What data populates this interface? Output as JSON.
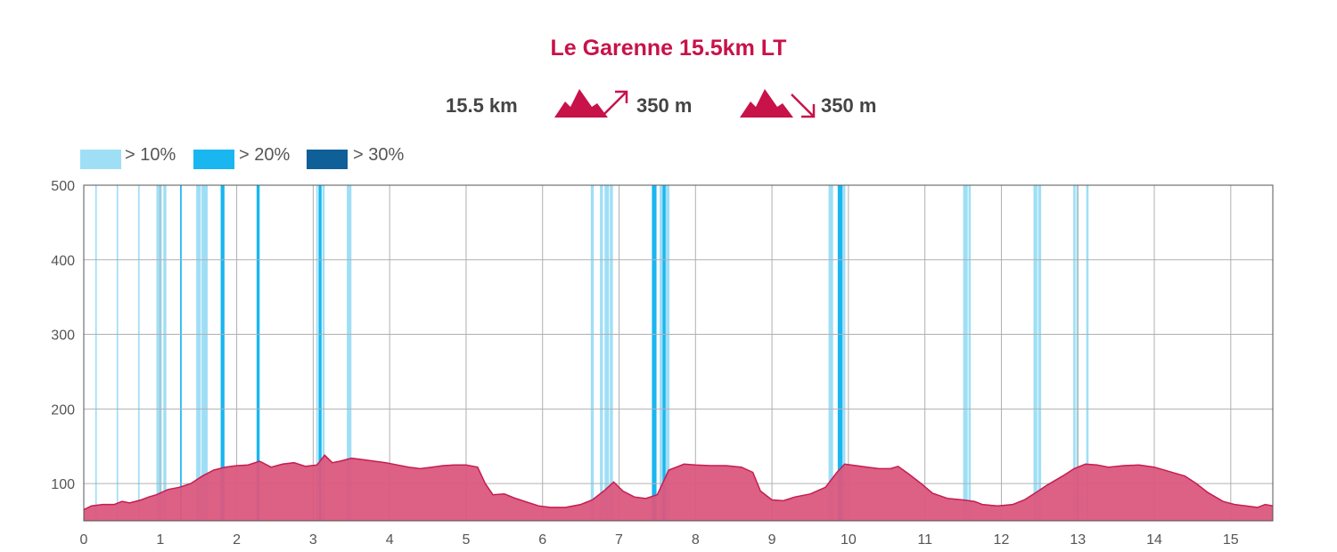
{
  "chart_data": {
    "type": "area",
    "title": "Le Garenne 15.5km LT",
    "stats": {
      "distance": "15.5 km",
      "ascent": "350 m",
      "descent": "350 m"
    },
    "xlabel": "",
    "ylabel": "",
    "xlim": [
      0,
      15.55
    ],
    "ylim": [
      50,
      500
    ],
    "x_ticks": [
      0,
      1,
      2,
      3,
      4,
      5,
      6,
      7,
      8,
      9,
      10,
      11,
      12,
      13,
      14,
      15
    ],
    "y_ticks": [
      100,
      200,
      300,
      400,
      500
    ],
    "grid": true,
    "legend_position": "top-left",
    "fill_color": "#db577e",
    "line_color": "#c41e50",
    "legend": [
      {
        "label": "> 10%",
        "color": "#9fdff6"
      },
      {
        "label": "> 20%",
        "color": "#1ab6f0"
      },
      {
        "label": "> 30%",
        "color": "#0f5f98"
      }
    ],
    "series": [
      {
        "name": "",
        "x": [
          0,
          0.1,
          0.25,
          0.4,
          0.5,
          0.6,
          0.75,
          0.85,
          0.95,
          1.1,
          1.25,
          1.4,
          1.55,
          1.7,
          1.85,
          2.0,
          2.15,
          2.3,
          2.45,
          2.6,
          2.75,
          2.9,
          3.05,
          3.15,
          3.25,
          3.35,
          3.5,
          3.65,
          3.8,
          3.95,
          4.1,
          4.25,
          4.4,
          4.55,
          4.7,
          4.85,
          5.0,
          5.15,
          5.25,
          5.35,
          5.5,
          5.65,
          5.8,
          5.95,
          6.1,
          6.3,
          6.5,
          6.65,
          6.8,
          6.93,
          7.05,
          7.2,
          7.35,
          7.5,
          7.65,
          7.85,
          8.0,
          8.2,
          8.4,
          8.6,
          8.75,
          8.85,
          9.0,
          9.15,
          9.3,
          9.5,
          9.7,
          9.85,
          9.95,
          10.1,
          10.25,
          10.4,
          10.55,
          10.65,
          10.8,
          10.95,
          11.1,
          11.3,
          11.5,
          11.65,
          11.75,
          11.95,
          12.15,
          12.3,
          12.45,
          12.6,
          12.8,
          12.95,
          13.1,
          13.25,
          13.4,
          13.6,
          13.8,
          14.0,
          14.2,
          14.4,
          14.55,
          14.7,
          14.9,
          15.05,
          15.2,
          15.35,
          15.45,
          15.55
        ],
        "values": [
          65,
          70,
          72,
          72,
          76,
          74,
          78,
          82,
          85,
          92,
          95,
          100,
          110,
          118,
          122,
          124,
          125,
          130,
          122,
          126,
          128,
          123,
          125,
          138,
          128,
          130,
          134,
          132,
          130,
          128,
          125,
          122,
          120,
          122,
          124,
          125,
          125,
          122,
          100,
          85,
          86,
          80,
          75,
          70,
          68,
          68,
          72,
          78,
          90,
          102,
          90,
          82,
          80,
          85,
          118,
          126,
          125,
          124,
          124,
          122,
          115,
          90,
          78,
          77,
          82,
          86,
          95,
          115,
          126,
          124,
          122,
          120,
          120,
          123,
          112,
          100,
          87,
          80,
          78,
          76,
          72,
          70,
          72,
          78,
          88,
          98,
          110,
          120,
          126,
          125,
          122,
          124,
          125,
          122,
          116,
          110,
          100,
          88,
          76,
          72,
          70,
          68,
          72,
          70
        ]
      }
    ],
    "slope_bands": [
      {
        "x": [
          0.15,
          0.17
        ],
        "level": 1
      },
      {
        "x": [
          0.43,
          0.45
        ],
        "level": 1
      },
      {
        "x": [
          0.71,
          0.73
        ],
        "level": 1
      },
      {
        "x": [
          0.95,
          1.02
        ],
        "level": 1
      },
      {
        "x": [
          1.04,
          1.08
        ],
        "level": 1
      },
      {
        "x": [
          1.26,
          1.28
        ],
        "level": 2
      },
      {
        "x": [
          1.47,
          1.53
        ],
        "level": 1
      },
      {
        "x": [
          1.54,
          1.62
        ],
        "level": 1
      },
      {
        "x": [
          1.79,
          1.84
        ],
        "level": 2
      },
      {
        "x": [
          2.26,
          2.3
        ],
        "level": 2
      },
      {
        "x": [
          3.04,
          3.06
        ],
        "level": 1
      },
      {
        "x": [
          3.07,
          3.11
        ],
        "level": 2
      },
      {
        "x": [
          3.12,
          3.15
        ],
        "level": 1
      },
      {
        "x": [
          3.44,
          3.5
        ],
        "level": 1
      },
      {
        "x": [
          6.63,
          6.67
        ],
        "level": 1
      },
      {
        "x": [
          6.75,
          6.79
        ],
        "level": 1
      },
      {
        "x": [
          6.81,
          6.87
        ],
        "level": 1
      },
      {
        "x": [
          6.88,
          6.92
        ],
        "level": 1
      },
      {
        "x": [
          7.43,
          7.49
        ],
        "level": 2
      },
      {
        "x": [
          7.53,
          7.57
        ],
        "level": 1
      },
      {
        "x": [
          7.57,
          7.61
        ],
        "level": 2
      },
      {
        "x": [
          7.61,
          7.66
        ],
        "level": 1
      },
      {
        "x": [
          9.74,
          9.8
        ],
        "level": 1
      },
      {
        "x": [
          9.86,
          9.92
        ],
        "level": 2
      },
      {
        "x": [
          9.92,
          9.96
        ],
        "level": 1
      },
      {
        "x": [
          11.5,
          11.56
        ],
        "level": 1
      },
      {
        "x": [
          11.57,
          11.6
        ],
        "level": 1
      },
      {
        "x": [
          12.42,
          12.47
        ],
        "level": 1
      },
      {
        "x": [
          12.48,
          12.52
        ],
        "level": 1
      },
      {
        "x": [
          12.94,
          12.97
        ],
        "level": 1
      },
      {
        "x": [
          12.98,
          13.01
        ],
        "level": 1
      },
      {
        "x": [
          13.11,
          13.14
        ],
        "level": 1
      }
    ]
  }
}
